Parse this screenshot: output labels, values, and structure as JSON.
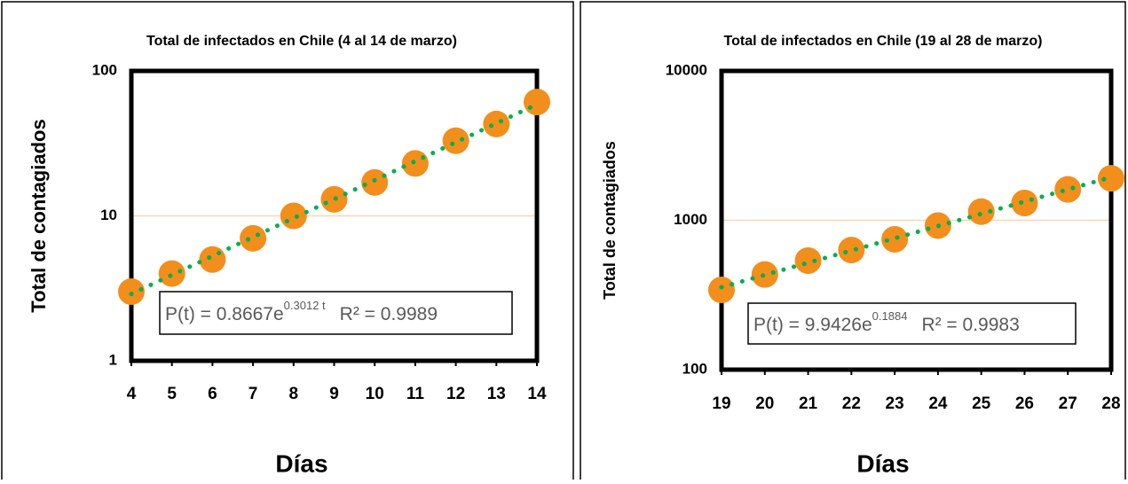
{
  "chart_data": [
    {
      "type": "scatter",
      "title": "Total de infectados en Chile (4 al 14 de marzo)",
      "x_label": "Días",
      "y_label": "Total de contagiados",
      "x": [
        4,
        5,
        6,
        7,
        8,
        9,
        10,
        11,
        12,
        13,
        14
      ],
      "values": [
        3,
        4,
        5,
        7,
        10,
        13,
        17,
        23,
        33,
        43,
        61
      ],
      "color": "#f28e1c",
      "log_y": true,
      "grid": true,
      "xlim": [
        4,
        14
      ],
      "xticks": [
        4,
        5,
        6,
        7,
        8,
        9,
        10,
        11,
        12,
        13,
        14
      ],
      "ylim": [
        1,
        100
      ],
      "yticks": [
        1,
        10,
        100
      ],
      "trendline": {
        "a": 0.8667,
        "b": 0.3012,
        "color": "#00b050",
        "equation": "P(t) = 0.8667e",
        "exponent": "0.3012 t",
        "r2": "R² = 0.9989"
      }
    },
    {
      "type": "scatter",
      "title": "Total de infectados en Chile  (19 al 28 de marzo)",
      "x_label": "Días",
      "y_label": "Total de contagiados",
      "x": [
        19,
        20,
        21,
        22,
        23,
        24,
        25,
        26,
        27,
        28
      ],
      "values": [
        342,
        434,
        537,
        632,
        746,
        922,
        1142,
        1306,
        1610,
        1909
      ],
      "color": "#f28e1c",
      "log_y": true,
      "grid": true,
      "xlim": [
        19,
        28
      ],
      "xticks": [
        19,
        20,
        21,
        22,
        23,
        24,
        25,
        26,
        27,
        28
      ],
      "ylim": [
        100,
        10000
      ],
      "yticks": [
        100,
        1000,
        10000
      ],
      "trendline": {
        "a": 9.9426,
        "b": 0.1884,
        "color": "#00b050",
        "equation": "P(t) = 9.9426e",
        "exponent": "0.1884",
        "r2": "R² = 0.9983"
      }
    }
  ]
}
